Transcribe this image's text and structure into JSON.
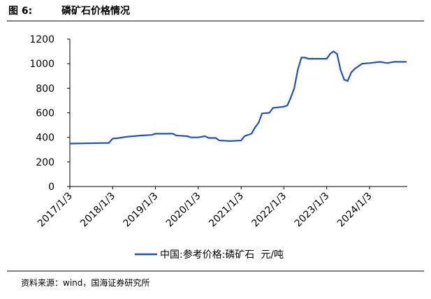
{
  "chart_data": {
    "type": "line",
    "figure_label": "图 6:",
    "title": "磷矿石价格情况",
    "source": "资料来源：wind，国海证券研究所",
    "x": [
      "2017-01-03",
      "2017-12-01",
      "2018-01-03",
      "2018-03-01",
      "2018-05-01",
      "2018-09-01",
      "2018-12-01",
      "2019-01-03",
      "2019-06-01",
      "2019-07-01",
      "2019-10-01",
      "2019-11-01",
      "2020-01-03",
      "2020-03-01",
      "2020-04-01",
      "2020-06-01",
      "2020-07-01",
      "2020-10-01",
      "2021-01-03",
      "2021-02-01",
      "2021-04-01",
      "2021-05-01",
      "2021-06-01",
      "2021-07-01",
      "2021-09-01",
      "2021-10-01",
      "2022-01-03",
      "2022-02-01",
      "2022-03-01",
      "2022-04-01",
      "2022-05-01",
      "2022-06-01",
      "2022-07-01",
      "2022-08-01",
      "2023-01-03",
      "2023-02-01",
      "2023-03-01",
      "2023-04-01",
      "2023-05-01",
      "2023-06-01",
      "2023-07-01",
      "2023-08-01",
      "2023-09-01",
      "2023-11-01",
      "2024-01-03",
      "2024-04-01",
      "2024-06-01",
      "2024-08-01",
      "2024-11-15"
    ],
    "series": [
      {
        "name": "中国:参考价格:磷矿石  元/吨",
        "color": "#1f4fc8",
        "values": [
          350,
          355,
          390,
          395,
          405,
          415,
          420,
          430,
          430,
          415,
          410,
          400,
          400,
          410,
          395,
          395,
          375,
          370,
          375,
          410,
          430,
          480,
          520,
          595,
          600,
          640,
          650,
          660,
          720,
          800,
          950,
          1050,
          1050,
          1040,
          1040,
          1080,
          1100,
          1080,
          950,
          870,
          860,
          930,
          960,
          1000,
          1005,
          1015,
          1005,
          1015,
          1015
        ]
      }
    ],
    "xlim": [
      "2017-01-03",
      "2024-11-20"
    ],
    "xticks": [
      {
        "value": "2017-01-03",
        "label": "2017/1/3"
      },
      {
        "value": "2018-01-03",
        "label": "2018/1/3"
      },
      {
        "value": "2019-01-03",
        "label": "2019/1/3"
      },
      {
        "value": "2020-01-03",
        "label": "2020/1/3"
      },
      {
        "value": "2021-01-03",
        "label": "2021/1/3"
      },
      {
        "value": "2022-01-03",
        "label": "2022/1/3"
      },
      {
        "value": "2023-01-03",
        "label": "2023/1/3"
      },
      {
        "value": "2024-01-03",
        "label": "2024/1/3"
      }
    ],
    "ylim": [
      0,
      1200
    ],
    "yticks": [
      0,
      200,
      400,
      600,
      800,
      1000,
      1200
    ],
    "grid": false
  }
}
